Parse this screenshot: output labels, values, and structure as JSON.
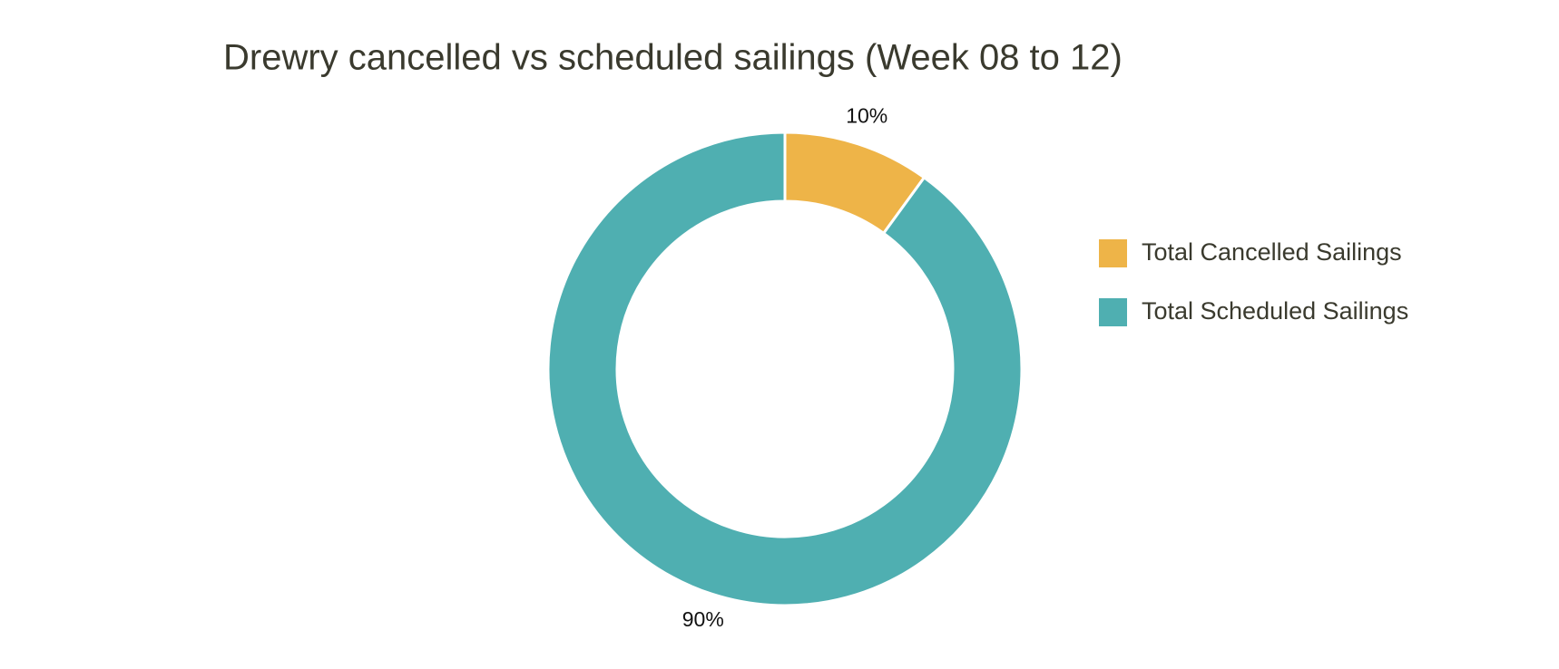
{
  "chart_data": {
    "type": "pie",
    "title": "Drewry cancelled vs scheduled sailings (Week 08 to 12)",
    "categories": [
      "Total Cancelled Sailings",
      "Total Scheduled Sailings"
    ],
    "values": [
      10,
      90
    ],
    "value_labels": [
      "10%",
      "90%"
    ],
    "colors": [
      "#eeb448",
      "#4fafb1"
    ],
    "donut": true
  }
}
